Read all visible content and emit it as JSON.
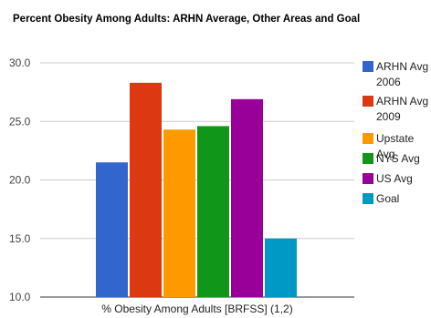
{
  "chart_data": {
    "type": "bar",
    "title": "Percent Obesity Among Adults: ARHN Average, Other Areas and Goal",
    "categories": [
      "% Obesity Among Adults [BRFSS] (1,2)"
    ],
    "series": [
      {
        "name": "ARHN Avg 2006",
        "color": "#3366cc",
        "values": [
          21.5
        ]
      },
      {
        "name": "ARHN Avg 2009",
        "color": "#dc3912",
        "values": [
          28.3
        ]
      },
      {
        "name": "Upstate Avg",
        "color": "#ff9900",
        "values": [
          24.3
        ]
      },
      {
        "name": "NYS Avg",
        "color": "#109618",
        "values": [
          24.6
        ]
      },
      {
        "name": "US Avg",
        "color": "#990099",
        "values": [
          26.9
        ]
      },
      {
        "name": "Goal",
        "color": "#0099c6",
        "values": [
          15.0
        ]
      }
    ],
    "xlabel": "% Obesity Among Adults [BRFSS] (1,2)",
    "ylabel": "",
    "ylim": [
      10,
      30
    ],
    "yticks": [
      "10.0",
      "15.0",
      "20.0",
      "25.0",
      "30.0"
    ],
    "grid": true,
    "legend_position": "right"
  }
}
